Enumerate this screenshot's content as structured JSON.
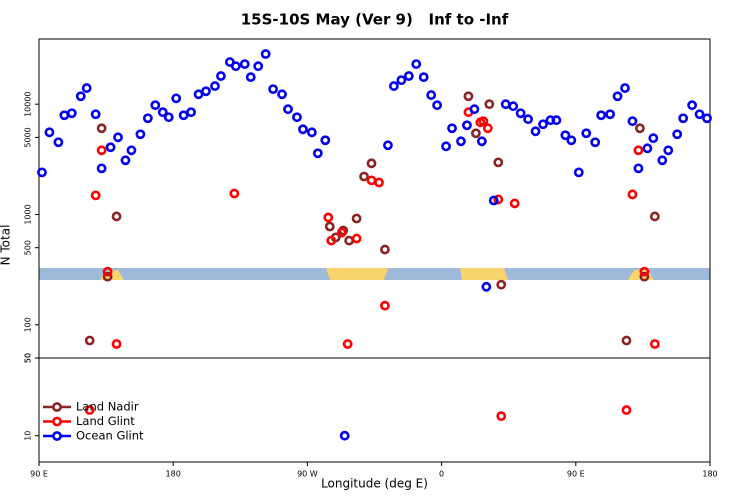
{
  "chart_data": [
    {
      "type": "scatter",
      "title": "15S-10S May (Ver 9)   Inf to -Inf",
      "y_label": "N Total",
      "xlim": [
        90,
        540
      ],
      "ylim": [
        50,
        39000
      ],
      "log_y": true,
      "yticks": [
        50,
        100,
        500,
        1000,
        5000,
        10000
      ],
      "series": [
        {
          "color": "#8b2323",
          "x": [
            124,
            132,
            136,
            142,
            285,
            289,
            294,
            298,
            303,
            308,
            313,
            322,
            378,
            383,
            392,
            398,
            400,
            484,
            493,
            496,
            503
          ],
          "values": [
            72,
            6050,
            273,
            960,
            778,
            620,
            716,
            580,
            920,
            2210,
            2910,
            481,
            11800,
            5450,
            10000,
            2970,
            231,
            72,
            6050,
            273,
            960
          ]
        },
        {
          "color": "#ff0000",
          "x": [
            128,
            132,
            136,
            142,
            221,
            284,
            286,
            293,
            297,
            303,
            313,
            318,
            322,
            378,
            386,
            388,
            391,
            398,
            409,
            488,
            492,
            496,
            503
          ],
          "values": [
            1490,
            3820,
            303,
            67,
            1550,
            940,
            580,
            685,
            67,
            605,
            2040,
            1950,
            149,
            8460,
            6850,
            7010,
            6050,
            1370,
            1260,
            1520,
            3820,
            303,
            67
          ]
        },
        {
          "color": "#0000ee",
          "x": [
            92,
            97,
            103,
            107,
            112,
            118,
            122,
            128,
            132,
            138,
            143,
            148,
            152,
            158,
            163,
            168,
            173,
            177,
            182,
            187,
            192,
            197,
            202,
            208,
            212,
            218,
            222,
            228,
            232,
            237,
            242,
            247,
            253,
            257,
            263,
            267,
            273,
            277,
            282,
            324,
            328,
            333,
            338,
            343,
            348,
            353,
            357,
            363,
            367,
            373,
            377,
            382,
            387,
            390,
            395,
            403,
            408,
            413,
            418,
            423,
            428,
            433,
            437,
            443,
            447,
            452,
            457,
            463,
            467,
            473,
            478,
            483,
            488,
            492,
            498,
            502,
            508,
            512,
            518,
            522,
            528,
            533,
            538
          ],
          "values": [
            2410,
            5560,
            4520,
            7940,
            8280,
            11800,
            14000,
            8110,
            2620,
            4070,
            5010,
            3100,
            3820,
            5340,
            7460,
            9790,
            8460,
            7620,
            11300,
            7940,
            8460,
            12300,
            13100,
            14600,
            18000,
            24100,
            22100,
            23100,
            17600,
            22100,
            28500,
            13700,
            12300,
            9010,
            7620,
            5920,
            5560,
            3590,
            4710,
            4240,
            14600,
            16500,
            18000,
            23100,
            17600,
            12100,
            9790,
            4150,
            6050,
            4610,
            6440,
            9010,
            4610,
            221,
            1340,
            10000,
            9590,
            8280,
            7310,
            5680,
            6580,
            7160,
            7160,
            5230,
            4710,
            2410,
            5450,
            4520,
            7940,
            8110,
            11800,
            14000,
            7010,
            2620,
            3980,
            4920,
            3100,
            3820,
            5340,
            7460,
            9790,
            8110,
            7460
          ]
        }
      ]
    },
    {
      "type": "scatter",
      "x_label": "Longitude (deg E)",
      "xlim": [
        90,
        540
      ],
      "xticks": [
        {
          "value": 90,
          "label": "90 E"
        },
        180,
        {
          "value": 270,
          "label": "90 W"
        },
        {
          "value": 360,
          "label": "0"
        },
        {
          "value": 450,
          "label": "90 E"
        },
        {
          "value": 540,
          "label": "180"
        }
      ],
      "ylim": [
        5.8,
        50
      ],
      "log_y": true,
      "yticks": [
        10,
        50
      ],
      "legend": "lower left",
      "series": [
        {
          "name": "Land Nadir",
          "color": "#8b2323",
          "x": [],
          "values": []
        },
        {
          "name": "Land Glint",
          "color": "#ff0000",
          "x": [
            124,
            400,
            484
          ],
          "values": [
            17,
            15,
            17
          ]
        },
        {
          "name": "Ocean Glint",
          "color": "#0000ee",
          "x": [
            295
          ],
          "values": [
            10
          ]
        }
      ]
    }
  ]
}
